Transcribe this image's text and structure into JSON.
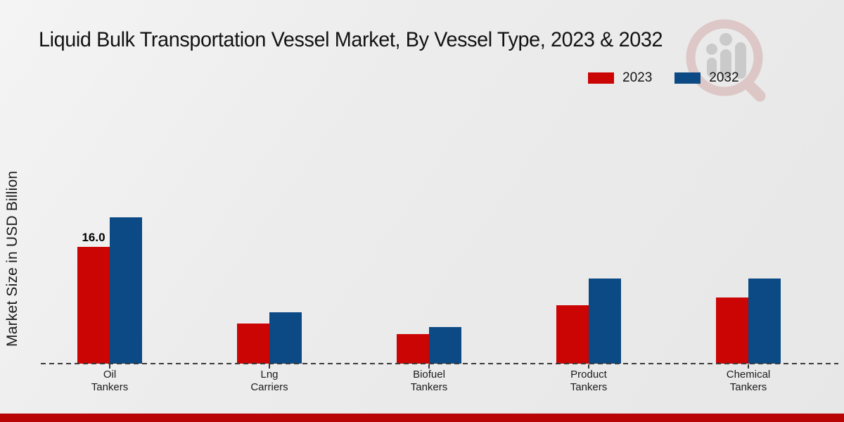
{
  "page": {
    "footer_color": "#b80404",
    "background_color": "#ececec",
    "axis_dash_color": "#3a3a3a"
  },
  "icons": {
    "watermark": "magnifier-bar-chart-logo",
    "watermark_ring_color": "#cf9d9d",
    "watermark_figure_color": "#a5a5a5"
  },
  "chart_data": {
    "type": "bar",
    "title": "Liquid Bulk Transportation Vessel Market, By Vessel Type, 2023 & 2032",
    "xlabel": "",
    "ylabel": "Market Size in USD Billion",
    "ylim": [
      0,
      42
    ],
    "grid": false,
    "legend_position": "top-right",
    "baseline_style": "dashed",
    "categories": [
      "Oil Tankers",
      "Lng Carriers",
      "Biofuel Tankers",
      "Product Tankers",
      "Chemical Tankers"
    ],
    "category_label_lines": [
      [
        "Oil",
        "Tankers"
      ],
      [
        "Lng",
        "Carriers"
      ],
      [
        "Biofuel",
        "Tankers"
      ],
      [
        "Product",
        "Tankers"
      ],
      [
        "Chemical",
        "Tankers"
      ]
    ],
    "series": [
      {
        "name": "2023",
        "color": "#cb0404",
        "values": [
          16.0,
          5.5,
          4.0,
          8.0,
          9.0
        ],
        "labels": [
          "16.0",
          "",
          "",
          "",
          ""
        ]
      },
      {
        "name": "2032",
        "color": "#0b4a84",
        "values": [
          20.0,
          7.0,
          5.0,
          11.6,
          11.6
        ],
        "labels": [
          "",
          "",
          "",
          "",
          ""
        ]
      }
    ]
  }
}
